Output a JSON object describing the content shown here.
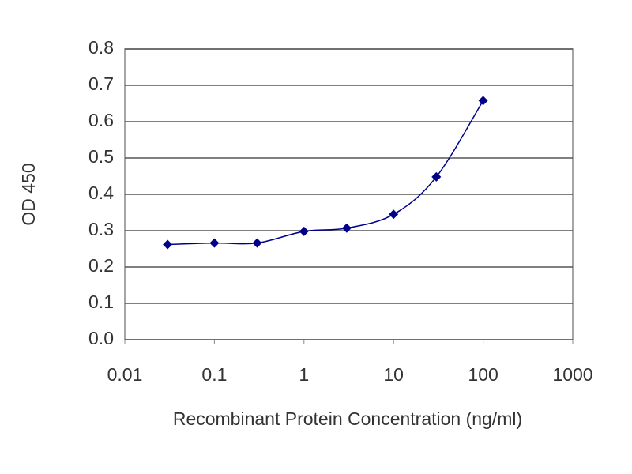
{
  "chart_data": {
    "type": "line",
    "x_label": "Recombinant Protein Concentration (ng/ml)",
    "y_label": "OD 450",
    "x": [
      0.03,
      0.1,
      0.3,
      1,
      3,
      10,
      30,
      100
    ],
    "values": [
      0.262,
      0.266,
      0.266,
      0.298,
      0.307,
      0.345,
      0.448,
      0.658
    ],
    "color": "#00008b",
    "x_log": true,
    "xlim": [
      0.01,
      1000
    ],
    "xticks": [
      0.01,
      0.1,
      1,
      10,
      100,
      1000
    ],
    "ylim": [
      0,
      0.8
    ],
    "yticks": [
      {
        "value": 0,
        "label": "0.0"
      },
      0.1,
      0.2,
      0.3,
      0.4,
      0.5,
      0.6,
      0.7,
      0.8
    ],
    "grid": true
  }
}
